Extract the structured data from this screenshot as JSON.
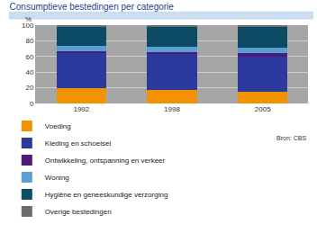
{
  "chart_data": {
    "type": "bar",
    "title": "Consumptieve bestedingen per categorie",
    "ylabel": "%",
    "source": "Bron: CBS",
    "stacked": true,
    "grid": true,
    "legend": "bottom",
    "categories": [
      "1992",
      "1998",
      "2005"
    ],
    "series": [
      {
        "name": "Voeding",
        "color": "#f39200",
        "values": [
          19,
          17,
          15
        ]
      },
      {
        "name": "Kleding en schoeisel",
        "color": "#2b3a9c",
        "values": [
          45,
          46,
          45
        ]
      },
      {
        "name": "Ontwikkeling, ontspanning en verkeer",
        "color": "#4b1a7a",
        "values": [
          3,
          3,
          4
        ]
      },
      {
        "name": "Woning",
        "color": "#5a9fd4",
        "values": [
          6,
          6,
          7
        ]
      },
      {
        "name": "Hygiëne en geneeskundige verzorging",
        "color": "#0d4a64",
        "values": [
          25,
          26,
          27
        ]
      },
      {
        "name": "Overige bestedingen",
        "color": "#6b6b6b",
        "values": [
          2,
          2,
          2
        ]
      }
    ],
    "ylim": [
      0,
      100
    ],
    "yticks": [
      0,
      20,
      40,
      60,
      80,
      100
    ]
  }
}
